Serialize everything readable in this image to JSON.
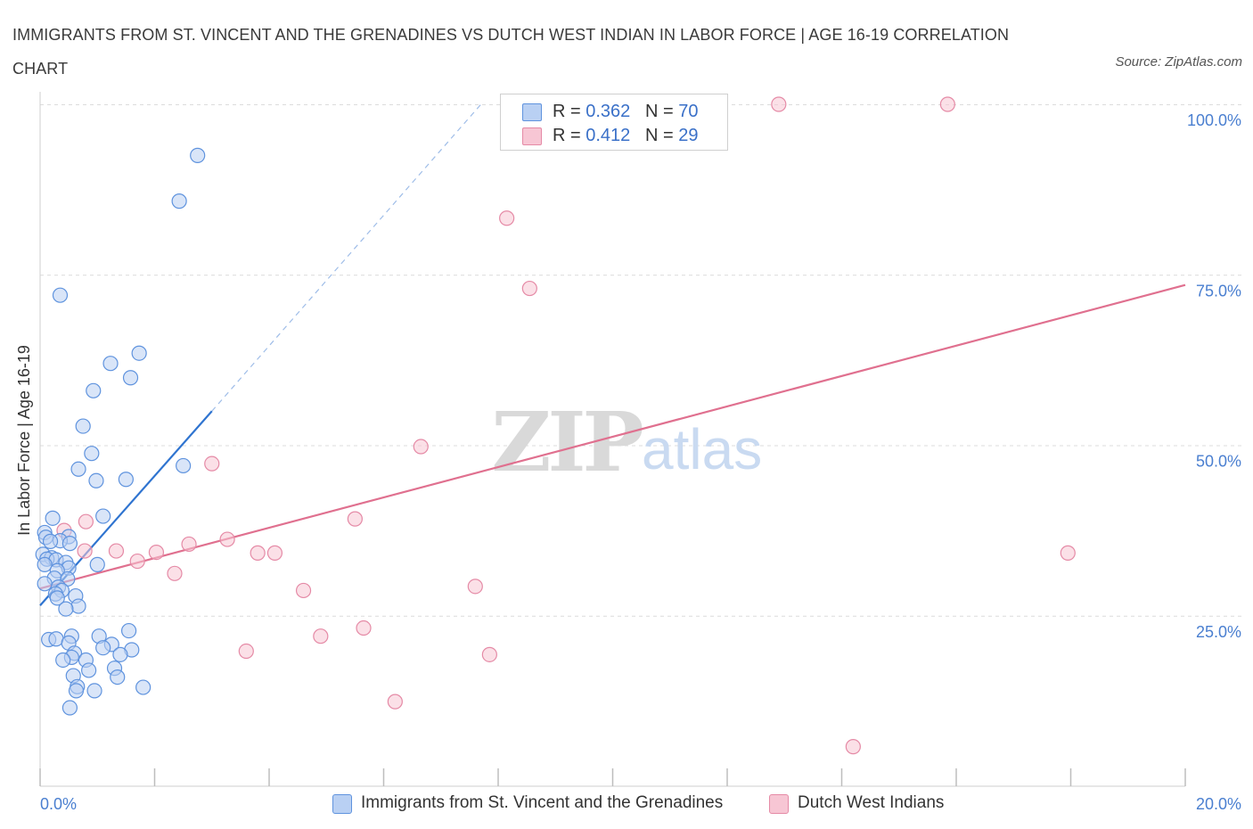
{
  "header": {
    "title": "IMMIGRANTS FROM ST. VINCENT AND THE GRENADINES VS DUTCH WEST INDIAN IN LABOR FORCE | AGE 16-19 CORRELATION CHART",
    "source": "Source: ZipAtlas.com"
  },
  "watermark": {
    "zip": "ZIP",
    "atlas": "atlas"
  },
  "legend_top": {
    "blue": {
      "r_label": "R =",
      "r_value": "0.362",
      "n_label": "N =",
      "n_value": "70"
    },
    "pink": {
      "r_label": "R =",
      "r_value": "0.412",
      "n_label": "N =",
      "n_value": "29"
    }
  },
  "legend_bottom": {
    "blue_label": "Immigrants from St. Vincent and the Grenadines",
    "pink_label": "Dutch West Indians"
  },
  "colors": {
    "blue_fill": "#b9d0f3",
    "blue_stroke": "#5f93de",
    "blue_line": "#2f74d0",
    "pink_fill": "#f7c6d4",
    "pink_stroke": "#e58aa6",
    "pink_line": "#e0708f",
    "grid": "#dcdcdc",
    "tick_text": "#4a7fd0"
  },
  "chart_data": {
    "type": "scatter",
    "title": "IMMIGRANTS FROM ST. VINCENT AND THE GRENADINES VS DUTCH WEST INDIAN IN LABOR FORCE | AGE 16-19 CORRELATION CHART",
    "xlabel": "",
    "ylabel": "In Labor Force | Age 16-19",
    "xlim": [
      0,
      20
    ],
    "ylim": [
      0,
      100
    ],
    "x_tick_labels": [
      "0.0%",
      "20.0%"
    ],
    "y_ticks": [
      25,
      50,
      75,
      100
    ],
    "y_tick_labels": [
      "25.0%",
      "50.0%",
      "75.0%",
      "100.0%"
    ],
    "grid": true,
    "legend_position": "top-center",
    "series": [
      {
        "name": "Immigrants from St. Vincent and the Grenadines",
        "color": "#5f93de",
        "r": 0.362,
        "n": 70,
        "trend": {
          "x": [
            0.0,
            3.0
          ],
          "y": [
            26.5,
            55.0
          ],
          "extended_to": [
            7.7,
            100.0
          ]
        },
        "points": [
          [
            2.75,
            92.5
          ],
          [
            2.43,
            85.8
          ],
          [
            0.35,
            72.0
          ],
          [
            1.73,
            63.5
          ],
          [
            1.23,
            62.0
          ],
          [
            1.58,
            59.9
          ],
          [
            0.93,
            58.0
          ],
          [
            0.75,
            52.8
          ],
          [
            0.9,
            48.8
          ],
          [
            2.5,
            47.0
          ],
          [
            0.67,
            46.5
          ],
          [
            1.5,
            45.0
          ],
          [
            0.98,
            44.8
          ],
          [
            1.1,
            39.6
          ],
          [
            0.22,
            39.3
          ],
          [
            0.08,
            37.2
          ],
          [
            0.1,
            36.5
          ],
          [
            0.5,
            36.6
          ],
          [
            0.35,
            36.0
          ],
          [
            0.18,
            35.9
          ],
          [
            0.52,
            35.6
          ],
          [
            0.05,
            34.0
          ],
          [
            0.2,
            33.5
          ],
          [
            0.12,
            33.3
          ],
          [
            0.28,
            33.2
          ],
          [
            0.45,
            32.8
          ],
          [
            0.08,
            32.5
          ],
          [
            0.5,
            32.0
          ],
          [
            0.3,
            31.6
          ],
          [
            0.25,
            30.5
          ],
          [
            0.48,
            30.4
          ],
          [
            0.08,
            29.7
          ],
          [
            0.32,
            29.2
          ],
          [
            0.38,
            28.7
          ],
          [
            0.27,
            28.2
          ],
          [
            0.62,
            27.9
          ],
          [
            0.3,
            27.6
          ],
          [
            0.67,
            26.4
          ],
          [
            0.45,
            26.0
          ],
          [
            1.0,
            32.5
          ],
          [
            0.15,
            21.5
          ],
          [
            0.28,
            21.6
          ],
          [
            0.55,
            22.0
          ],
          [
            1.03,
            22.0
          ],
          [
            1.55,
            22.8
          ],
          [
            0.5,
            21.0
          ],
          [
            1.25,
            20.8
          ],
          [
            1.1,
            20.3
          ],
          [
            1.6,
            20.0
          ],
          [
            0.6,
            19.5
          ],
          [
            1.4,
            19.3
          ],
          [
            0.55,
            18.9
          ],
          [
            0.4,
            18.5
          ],
          [
            0.8,
            18.5
          ],
          [
            0.85,
            17.0
          ],
          [
            1.3,
            17.3
          ],
          [
            0.58,
            16.2
          ],
          [
            1.35,
            16.0
          ],
          [
            0.65,
            14.6
          ],
          [
            1.8,
            14.5
          ],
          [
            0.63,
            14.0
          ],
          [
            0.95,
            14.0
          ],
          [
            0.52,
            11.5
          ]
        ]
      },
      {
        "name": "Dutch West Indians",
        "color": "#e58aa6",
        "r": 0.412,
        "n": 29,
        "trend": {
          "x": [
            0.0,
            20.0
          ],
          "y": [
            29.0,
            73.5
          ]
        },
        "points": [
          [
            10.15,
            100.0
          ],
          [
            12.9,
            100.0
          ],
          [
            15.85,
            100.0
          ],
          [
            8.15,
            83.3
          ],
          [
            8.55,
            73.0
          ],
          [
            6.65,
            49.8
          ],
          [
            3.0,
            47.3
          ],
          [
            0.8,
            38.8
          ],
          [
            5.5,
            39.2
          ],
          [
            0.42,
            37.5
          ],
          [
            3.27,
            36.2
          ],
          [
            2.6,
            35.5
          ],
          [
            0.78,
            34.5
          ],
          [
            1.33,
            34.5
          ],
          [
            2.03,
            34.3
          ],
          [
            3.8,
            34.2
          ],
          [
            4.1,
            34.2
          ],
          [
            1.7,
            33.0
          ],
          [
            17.95,
            34.2
          ],
          [
            2.35,
            31.2
          ],
          [
            7.6,
            29.3
          ],
          [
            4.6,
            28.7
          ],
          [
            5.65,
            23.2
          ],
          [
            4.9,
            22.0
          ],
          [
            3.6,
            19.8
          ],
          [
            7.85,
            19.3
          ],
          [
            6.2,
            12.4
          ],
          [
            14.2,
            5.8
          ]
        ]
      }
    ]
  }
}
